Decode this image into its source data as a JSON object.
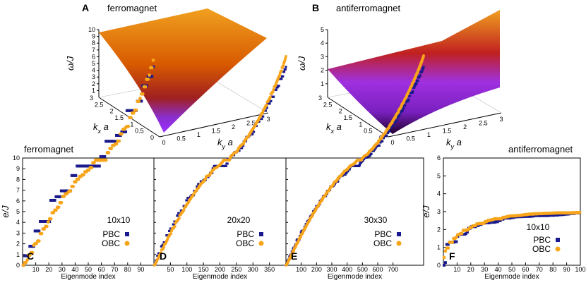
{
  "colors": {
    "pbc": "#1a1a8c",
    "obc": "#f8a51b",
    "axis": "#000000",
    "grid": "#9a9a9a"
  },
  "surfaces": [
    {
      "panel": "A",
      "title": "ferromagnet",
      "zlabel": "ω/J",
      "xlabel": "k_x a",
      "ylabel": "k_y a",
      "zticks": [
        "1",
        "2",
        "3",
        "4",
        "5",
        "6",
        "7",
        "8",
        "9",
        "10"
      ],
      "xticks": [
        "0",
        "0.5",
        "1",
        "1.5",
        "2",
        "2.5",
        "3"
      ],
      "yticks": [
        "0",
        "0.5",
        "1",
        "1.5",
        "2",
        "2.5",
        "3"
      ]
    },
    {
      "panel": "B",
      "title": "antiferromagnet",
      "zlabel": "ω/J",
      "xlabel": "k_x a",
      "ylabel": "k_y a",
      "zticks": [
        "1",
        "2",
        "3",
        "4",
        "5"
      ],
      "xticks": [
        "0",
        "0.5",
        "1",
        "1.5",
        "2",
        "2.5",
        "3"
      ],
      "yticks": [
        "0",
        "0.5",
        "1",
        "1.5",
        "2",
        "2.5",
        "3"
      ]
    }
  ],
  "section_titles": {
    "left": "ferromagnet",
    "right": "antiferromagnet"
  },
  "chart_data": [
    {
      "type": "scatter",
      "panel": "C",
      "lattice": "10x10",
      "xlabel": "Eigenmode index",
      "ylabel": "e/J",
      "xlim": [
        0,
        100
      ],
      "ylim": [
        0,
        10
      ],
      "xticks": [
        10,
        20,
        30,
        40,
        50,
        60,
        70,
        80,
        90
      ],
      "yticks": [
        0,
        1,
        2,
        3,
        4,
        5,
        6,
        7,
        8,
        9,
        10
      ],
      "legend": [
        "PBC",
        "OBC"
      ],
      "series": [
        {
          "name": "PBC",
          "model": "fm_pbc",
          "n": 100
        },
        {
          "name": "OBC",
          "model": "fm_obc",
          "n": 100
        }
      ]
    },
    {
      "type": "scatter",
      "panel": "D",
      "lattice": "20x20",
      "xlabel": "Eigenmode index",
      "ylabel": "",
      "xlim": [
        0,
        400
      ],
      "ylim": [
        0,
        10
      ],
      "xticks": [
        50,
        100,
        150,
        200,
        250,
        300,
        350
      ],
      "legend": [
        "PBC",
        "OBC"
      ],
      "series": [
        {
          "name": "PBC",
          "model": "fm_pbc",
          "n": 400
        },
        {
          "name": "OBC",
          "model": "fm_obc",
          "n": 400
        }
      ]
    },
    {
      "type": "scatter",
      "panel": "E",
      "lattice": "30x30",
      "xlabel": "Eigenmode index",
      "ylabel": "",
      "xlim": [
        0,
        900
      ],
      "ylim": [
        0,
        10
      ],
      "xticks": [
        100,
        200,
        300,
        400,
        500,
        600,
        700
      ],
      "legend": [
        "PBC",
        "OBC"
      ],
      "series": [
        {
          "name": "PBC",
          "model": "fm_pbc",
          "n": 900
        },
        {
          "name": "OBC",
          "model": "fm_obc",
          "n": 900
        }
      ]
    },
    {
      "type": "scatter",
      "panel": "F",
      "lattice": "10x10",
      "xlabel": "Eigenmode index",
      "ylabel": "e/J",
      "xlim": [
        0,
        100
      ],
      "ylim": [
        0,
        6
      ],
      "xticks": [
        10,
        20,
        30,
        40,
        50,
        60,
        70,
        80,
        90,
        100
      ],
      "yticks": [
        0,
        1,
        2,
        3,
        4,
        5,
        6
      ],
      "legend": [
        "PBC",
        "OBC"
      ],
      "series": [
        {
          "name": "PBC",
          "model": "afm_pbc",
          "n": 100
        },
        {
          "name": "OBC",
          "model": "afm_obc",
          "n": 100
        }
      ]
    }
  ]
}
